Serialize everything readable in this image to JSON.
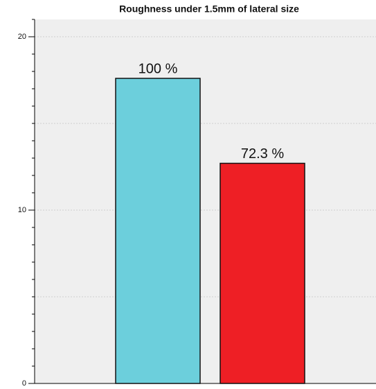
{
  "chart_data": {
    "type": "bar",
    "title": "Roughness under 1.5mm of lateral size",
    "categories": [
      null,
      null
    ],
    "values": [
      17.6,
      12.7
    ],
    "colors": [
      "#6ccfdc",
      "#ee1f25"
    ],
    "annotations": [
      "100 %",
      "72.3 %"
    ],
    "ylim": [
      0,
      21
    ],
    "yticks": [
      0,
      10,
      20
    ],
    "grid_lines": [
      5,
      10,
      15,
      20
    ],
    "minor_tick_interval": 1,
    "grid": true
  }
}
